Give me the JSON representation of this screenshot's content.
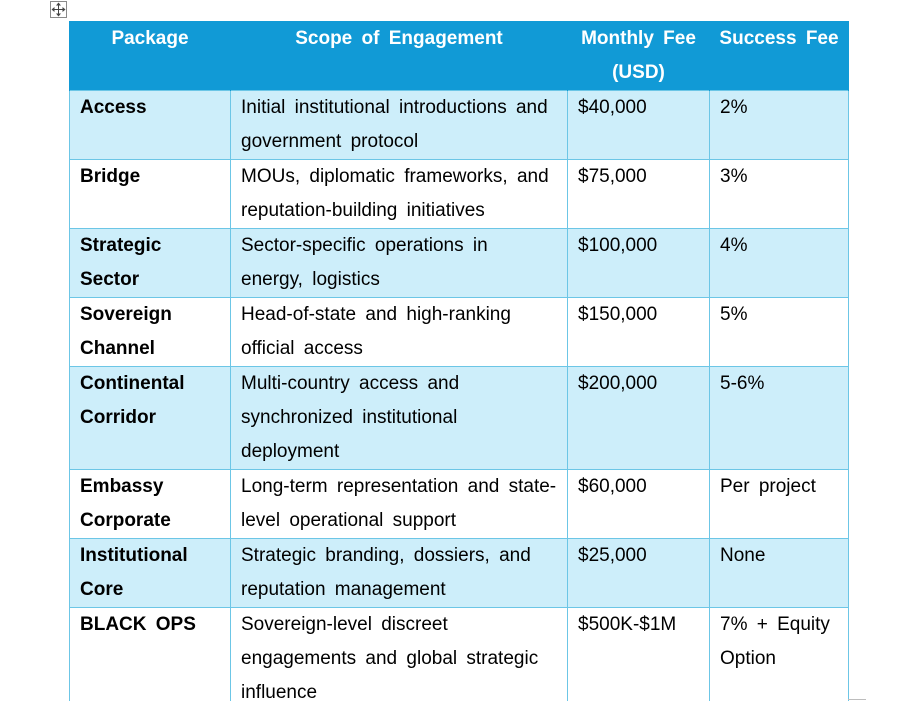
{
  "table": {
    "headers": {
      "package": "Package",
      "scope": "Scope of Engagement",
      "monthly_fee": "Monthly Fee (USD)",
      "success_fee": "Success Fee"
    },
    "rows": [
      {
        "package": "Access",
        "scope": "Initial institutional introductions and government protocol",
        "monthly_fee": "$40,000",
        "success_fee": "2%"
      },
      {
        "package": "Bridge",
        "scope": "MOUs, diplomatic frameworks, and reputation-building initiatives",
        "monthly_fee": "$75,000",
        "success_fee": "3%"
      },
      {
        "package": "Strategic Sector",
        "scope": "Sector-specific operations in energy, logistics",
        "monthly_fee": "$100,000",
        "success_fee": "4%"
      },
      {
        "package": "Sovereign Channel",
        "scope": "Head-of-state and high-ranking official access",
        "monthly_fee": "$150,000",
        "success_fee": "5%"
      },
      {
        "package": "Continental Corridor",
        "scope": "Multi-country access and synchronized institutional deployment",
        "monthly_fee": "$200,000",
        "success_fee": "5-6%"
      },
      {
        "package": "Embassy Corporate",
        "scope": "Long-term representation and state-level operational support",
        "monthly_fee": "$60,000",
        "success_fee": "Per project"
      },
      {
        "package": "Institutional Core",
        "scope": "Strategic branding, dossiers, and reputation management",
        "monthly_fee": "$25,000",
        "success_fee": "None"
      },
      {
        "package": "BLACK OPS",
        "scope": "Sovereign-level discreet engagements and global strategic influence",
        "monthly_fee": "$500K-$1M",
        "success_fee": "7% + Equity Option"
      }
    ]
  },
  "colors": {
    "header_bg": "#119ad6",
    "header_text": "#ffffff",
    "band_row_bg": "#cdeefa",
    "plain_row_bg": "#ffffff",
    "border": "#6cc6e6"
  },
  "icons": {
    "table_handle": "move-arrows-icon"
  }
}
